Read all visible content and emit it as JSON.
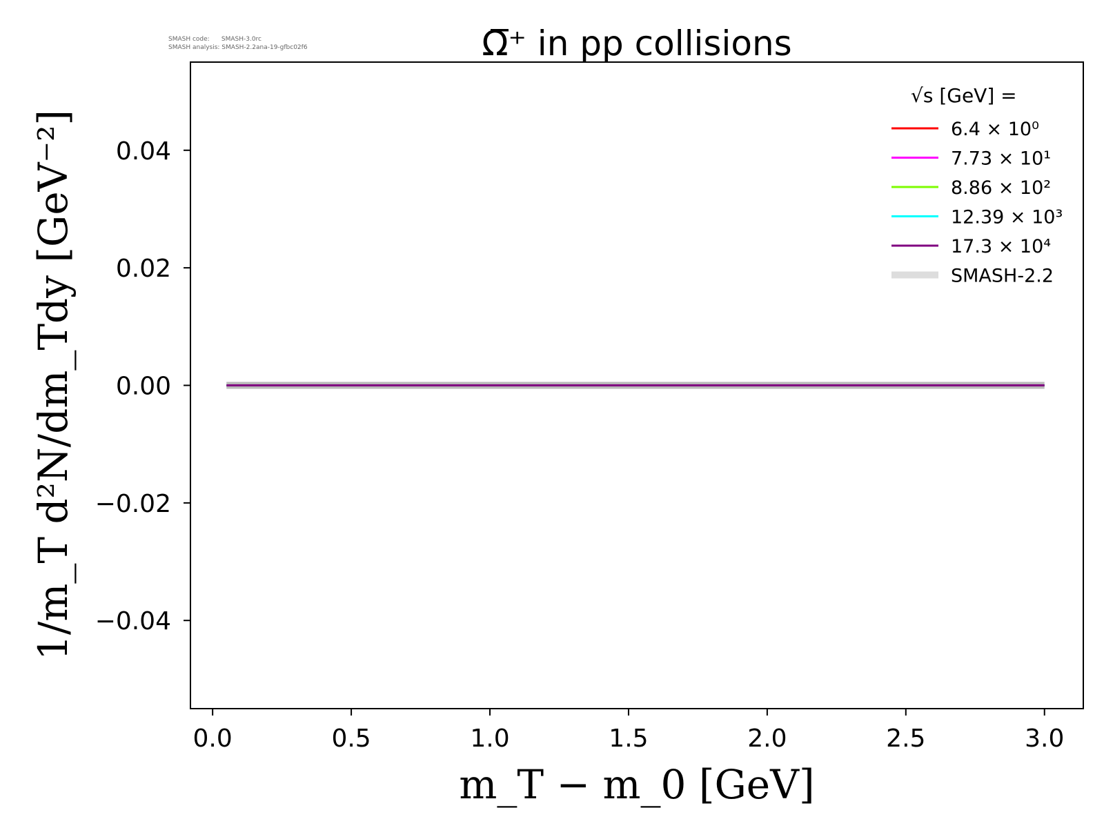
{
  "watermark": {
    "line1": "SMASH code:      SMASH-3.0rc",
    "line2": "SMASH analysis: SMASH-2.2ana-19-gfbc02f6"
  },
  "chart_data": {
    "type": "line",
    "title": "Ω̅⁺ in pp collisions",
    "xlabel": "m_T − m_0 [GeV]",
    "ylabel": "1/m_T d²N/dm_Tdy [GeV⁻²]",
    "xlim": [
      -0.08,
      3.14
    ],
    "ylim": [
      -0.055,
      0.055
    ],
    "xticks": [
      0.0,
      0.5,
      1.0,
      1.5,
      2.0,
      2.5,
      3.0
    ],
    "xtick_labels": [
      "0.0",
      "0.5",
      "1.0",
      "1.5",
      "2.0",
      "2.5",
      "3.0"
    ],
    "yticks": [
      0.04,
      0.02,
      0.0,
      -0.02,
      -0.04
    ],
    "ytick_labels": [
      "0.04",
      "0.02",
      "0.00",
      "−0.02",
      "−0.04"
    ],
    "grid": false,
    "legend_position": "top-right",
    "legend_title": "√s [GeV] =",
    "series": [
      {
        "name": "6.4 × 10⁰",
        "color": "#ff0000",
        "x": [
          0.05,
          3.0
        ],
        "y": [
          0.0,
          0.0
        ]
      },
      {
        "name": "7.73 × 10¹",
        "color": "#ff00ff",
        "x": [
          0.05,
          3.0
        ],
        "y": [
          0.0,
          0.0
        ]
      },
      {
        "name": "8.86 × 10²",
        "color": "#7cfc00",
        "x": [
          0.05,
          3.0
        ],
        "y": [
          0.0,
          0.0
        ]
      },
      {
        "name": "12.39 × 10³",
        "color": "#00ffff",
        "x": [
          0.05,
          3.0
        ],
        "y": [
          0.0,
          0.0
        ]
      },
      {
        "name": "17.3 × 10⁴",
        "color": "#800080",
        "x": [
          0.05,
          3.0
        ],
        "y": [
          0.0,
          0.0
        ]
      },
      {
        "name": "SMASH-2.2",
        "color": "#dddddd",
        "x": [
          0.05,
          3.0
        ],
        "y": [
          0.0,
          0.0
        ],
        "style": "thick-band"
      }
    ]
  }
}
